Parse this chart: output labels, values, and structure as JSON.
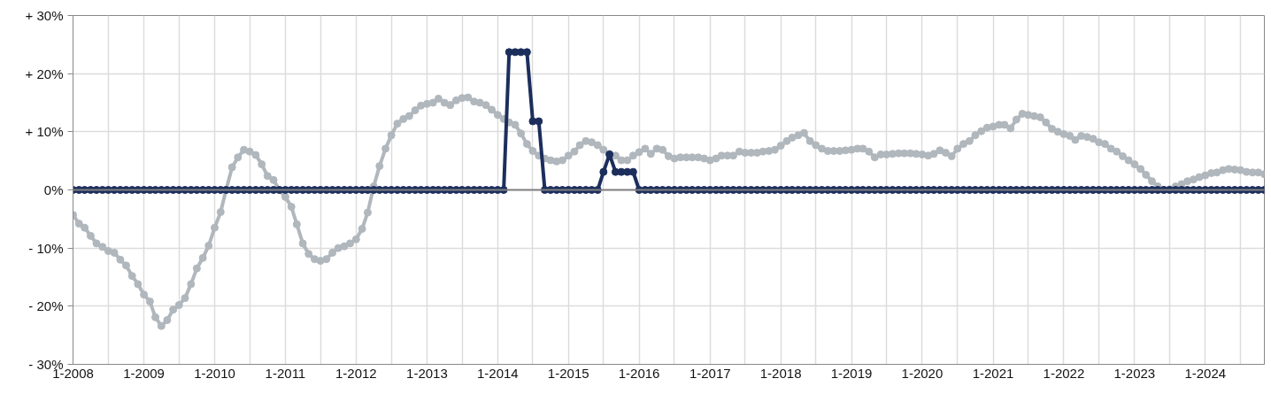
{
  "chart_data": {
    "type": "line",
    "x": [
      "2008-01",
      "2008-02",
      "2008-03",
      "2008-04",
      "2008-05",
      "2008-06",
      "2008-07",
      "2008-08",
      "2008-09",
      "2008-10",
      "2008-11",
      "2008-12",
      "2009-01",
      "2009-02",
      "2009-03",
      "2009-04",
      "2009-05",
      "2009-06",
      "2009-07",
      "2009-08",
      "2009-09",
      "2009-10",
      "2009-11",
      "2009-12",
      "2010-01",
      "2010-02",
      "2010-03",
      "2010-04",
      "2010-05",
      "2010-06",
      "2010-07",
      "2010-08",
      "2010-09",
      "2010-10",
      "2010-11",
      "2010-12",
      "2011-01",
      "2011-02",
      "2011-03",
      "2011-04",
      "2011-05",
      "2011-06",
      "2011-07",
      "2011-08",
      "2011-09",
      "2011-10",
      "2011-11",
      "2011-12",
      "2012-01",
      "2012-02",
      "2012-03",
      "2012-04",
      "2012-05",
      "2012-06",
      "2012-07",
      "2012-08",
      "2012-09",
      "2012-10",
      "2012-11",
      "2012-12",
      "2013-01",
      "2013-02",
      "2013-03",
      "2013-04",
      "2013-05",
      "2013-06",
      "2013-07",
      "2013-08",
      "2013-09",
      "2013-10",
      "2013-11",
      "2013-12",
      "2014-01",
      "2014-02",
      "2014-03",
      "2014-04",
      "2014-05",
      "2014-06",
      "2014-07",
      "2014-08",
      "2014-09",
      "2014-10",
      "2014-11",
      "2014-12",
      "2015-01",
      "2015-02",
      "2015-03",
      "2015-04",
      "2015-05",
      "2015-06",
      "2015-07",
      "2015-08",
      "2015-09",
      "2015-10",
      "2015-11",
      "2015-12",
      "2016-01",
      "2016-02",
      "2016-03",
      "2016-04",
      "2016-05",
      "2016-06",
      "2016-07",
      "2016-08",
      "2016-09",
      "2016-10",
      "2016-11",
      "2016-12",
      "2017-01",
      "2017-02",
      "2017-03",
      "2017-04",
      "2017-05",
      "2017-06",
      "2017-07",
      "2017-08",
      "2017-09",
      "2017-10",
      "2017-11",
      "2017-12",
      "2018-01",
      "2018-02",
      "2018-03",
      "2018-04",
      "2018-05",
      "2018-06",
      "2018-07",
      "2018-08",
      "2018-09",
      "2018-10",
      "2018-11",
      "2018-12",
      "2019-01",
      "2019-02",
      "2019-03",
      "2019-04",
      "2019-05",
      "2019-06",
      "2019-07",
      "2019-08",
      "2019-09",
      "2019-10",
      "2019-11",
      "2019-12",
      "2020-01",
      "2020-02",
      "2020-03",
      "2020-04",
      "2020-05",
      "2020-06",
      "2020-07",
      "2020-08",
      "2020-09",
      "2020-10",
      "2020-11",
      "2020-12",
      "2021-01",
      "2021-02",
      "2021-03",
      "2021-04",
      "2021-05",
      "2021-06",
      "2021-07",
      "2021-08",
      "2021-09",
      "2021-10",
      "2021-11",
      "2021-12",
      "2022-01",
      "2022-02",
      "2022-03",
      "2022-04",
      "2022-05",
      "2022-06",
      "2022-07",
      "2022-08",
      "2022-09",
      "2022-10",
      "2022-11",
      "2022-12",
      "2023-01",
      "2023-02",
      "2023-03",
      "2023-04",
      "2023-05",
      "2023-06",
      "2023-07",
      "2023-08",
      "2023-09",
      "2023-10",
      "2023-11",
      "2023-12",
      "2024-01",
      "2024-02",
      "2024-03",
      "2024-04",
      "2024-05",
      "2024-06",
      "2024-07",
      "2024-08",
      "2024-09",
      "2024-10",
      "2024-11"
    ],
    "series": [
      {
        "color": "#b0b7bd",
        "values": [
          -4.3,
          -5.8,
          -6.5,
          -7.9,
          -9.2,
          -9.8,
          -10.5,
          -10.8,
          -12.0,
          -13.0,
          -14.8,
          -16.2,
          -18.0,
          -19.2,
          -21.9,
          -23.4,
          -22.4,
          -20.6,
          -19.8,
          -18.6,
          -16.2,
          -13.5,
          -11.7,
          -9.6,
          -6.5,
          -3.8,
          0.0,
          3.9,
          5.6,
          6.9,
          6.6,
          6.0,
          4.4,
          2.4,
          1.7,
          0.0,
          -1.2,
          -2.9,
          -5.9,
          -9.2,
          -11.0,
          -11.9,
          -12.2,
          -11.9,
          -10.8,
          -10.0,
          -9.7,
          -9.2,
          -8.5,
          -6.7,
          -3.9,
          0.6,
          4.1,
          7.1,
          9.4,
          11.4,
          12.2,
          12.7,
          13.7,
          14.5,
          14.8,
          15.0,
          15.7,
          15.0,
          14.6,
          15.4,
          15.8,
          15.9,
          15.2,
          15.0,
          14.6,
          13.8,
          12.9,
          12.2,
          11.6,
          11.2,
          9.7,
          7.9,
          6.7,
          5.9,
          5.4,
          5.1,
          4.9,
          5.1,
          5.9,
          6.6,
          7.7,
          8.4,
          8.2,
          7.7,
          6.9,
          6.2,
          5.9,
          5.1,
          5.1,
          5.9,
          6.5,
          7.1,
          6.2,
          7.1,
          6.9,
          5.8,
          5.4,
          5.6,
          5.6,
          5.6,
          5.6,
          5.4,
          5.1,
          5.4,
          5.9,
          5.9,
          5.9,
          6.6,
          6.4,
          6.4,
          6.4,
          6.6,
          6.7,
          6.9,
          7.6,
          8.4,
          9.0,
          9.4,
          9.8,
          8.4,
          7.7,
          7.1,
          6.7,
          6.7,
          6.7,
          6.8,
          6.9,
          7.1,
          7.1,
          6.6,
          5.6,
          6.1,
          6.1,
          6.2,
          6.3,
          6.3,
          6.3,
          6.2,
          6.1,
          5.9,
          6.2,
          6.8,
          6.4,
          5.8,
          7.1,
          7.9,
          8.4,
          9.4,
          10.1,
          10.7,
          10.9,
          11.2,
          11.2,
          10.6,
          12.1,
          13.1,
          12.9,
          12.7,
          12.5,
          11.6,
          10.5,
          10.0,
          9.6,
          9.3,
          8.6,
          9.3,
          9.1,
          8.8,
          8.2,
          7.9,
          7.1,
          6.6,
          5.8,
          5.1,
          4.4,
          3.6,
          2.6,
          1.5,
          0.6,
          0.0,
          0.1,
          0.6,
          1.0,
          1.5,
          1.8,
          2.2,
          2.5,
          2.9,
          3.0,
          3.4,
          3.6,
          3.5,
          3.4,
          3.1,
          3.0,
          3.0,
          2.7
        ]
      },
      {
        "color": "#1c2e5c",
        "values": [
          0,
          0,
          0,
          0,
          0,
          0,
          0,
          0,
          0,
          0,
          0,
          0,
          0,
          0,
          0,
          0,
          0,
          0,
          0,
          0,
          0,
          0,
          0,
          0,
          0,
          0,
          0,
          0,
          0,
          0,
          0,
          0,
          0,
          0,
          0,
          0,
          0,
          0,
          0,
          0,
          0,
          0,
          0,
          0,
          0,
          0,
          0,
          0,
          0,
          0,
          0,
          0,
          0,
          0,
          0,
          0,
          0,
          0,
          0,
          0,
          0,
          0,
          0,
          0,
          0,
          0,
          0,
          0,
          0,
          0,
          0,
          0,
          0,
          0,
          23.7,
          23.7,
          23.7,
          23.7,
          11.8,
          11.8,
          0,
          0,
          0,
          0,
          0,
          0,
          0,
          0,
          0,
          0,
          3.1,
          6.1,
          3.1,
          3.1,
          3.1,
          3.1,
          0,
          0,
          0,
          0,
          0,
          0,
          0,
          0,
          0,
          0,
          0,
          0,
          0,
          0,
          0,
          0,
          0,
          0,
          0,
          0,
          0,
          0,
          0,
          0,
          0,
          0,
          0,
          0,
          0,
          0,
          0,
          0,
          0,
          0,
          0,
          0,
          0,
          0,
          0,
          0,
          0,
          0,
          0,
          0,
          0,
          0,
          0,
          0,
          0,
          0,
          0,
          0,
          0,
          0,
          0,
          0,
          0,
          0,
          0,
          0,
          0,
          0,
          0,
          0,
          0,
          0,
          0,
          0,
          0,
          0,
          0,
          0,
          0,
          0,
          0,
          0,
          0,
          0,
          0,
          0,
          0,
          0,
          0,
          0,
          0,
          0,
          0,
          0,
          0,
          0,
          0,
          0,
          0,
          0,
          0,
          0,
          0,
          0,
          0,
          0,
          0,
          0,
          0,
          0,
          0,
          0,
          0
        ]
      }
    ],
    "xlim": [
      "2008-01",
      "2024-11"
    ],
    "xticks": [
      {
        "value": "2008-01",
        "label": "1-2008"
      },
      {
        "value": "2008-07",
        "label": null
      },
      {
        "value": "2009-01",
        "label": "1-2009"
      },
      {
        "value": "2009-07",
        "label": null
      },
      {
        "value": "2010-01",
        "label": "1-2010"
      },
      {
        "value": "2010-07",
        "label": null
      },
      {
        "value": "2011-01",
        "label": "1-2011"
      },
      {
        "value": "2011-07",
        "label": null
      },
      {
        "value": "2012-01",
        "label": "1-2012"
      },
      {
        "value": "2012-07",
        "label": null
      },
      {
        "value": "2013-01",
        "label": "1-2013"
      },
      {
        "value": "2013-07",
        "label": null
      },
      {
        "value": "2014-01",
        "label": "1-2014"
      },
      {
        "value": "2014-07",
        "label": null
      },
      {
        "value": "2015-01",
        "label": "1-2015"
      },
      {
        "value": "2015-07",
        "label": null
      },
      {
        "value": "2016-01",
        "label": "1-2016"
      },
      {
        "value": "2016-07",
        "label": null
      },
      {
        "value": "2017-01",
        "label": "1-2017"
      },
      {
        "value": "2017-07",
        "label": null
      },
      {
        "value": "2018-01",
        "label": "1-2018"
      },
      {
        "value": "2018-07",
        "label": null
      },
      {
        "value": "2019-01",
        "label": "1-2019"
      },
      {
        "value": "2019-07",
        "label": null
      },
      {
        "value": "2020-01",
        "label": "1-2020"
      },
      {
        "value": "2020-07",
        "label": null
      },
      {
        "value": "2021-01",
        "label": "1-2021"
      },
      {
        "value": "2021-07",
        "label": null
      },
      {
        "value": "2022-01",
        "label": "1-2022"
      },
      {
        "value": "2022-07",
        "label": null
      },
      {
        "value": "2023-01",
        "label": "1-2023"
      },
      {
        "value": "2023-07",
        "label": null
      },
      {
        "value": "2024-01",
        "label": "1-2024"
      },
      {
        "value": "2024-07",
        "label": null
      }
    ],
    "ylim": [
      -30,
      30
    ],
    "yticks": [
      {
        "value": -30,
        "label": "- 30%"
      },
      {
        "value": -20,
        "label": "- 20%"
      },
      {
        "value": -10,
        "label": "- 10%"
      },
      {
        "value": 0,
        "label": "0%"
      },
      {
        "value": 10,
        "label": "+ 10%"
      },
      {
        "value": 20,
        "label": "+ 20%"
      },
      {
        "value": 30,
        "label": "+ 30%"
      }
    ],
    "ref_lines": [
      {
        "axis": "y",
        "value": 0,
        "color": "#808080"
      }
    ],
    "grid": true,
    "marker": "circle",
    "line_style": "solid"
  }
}
